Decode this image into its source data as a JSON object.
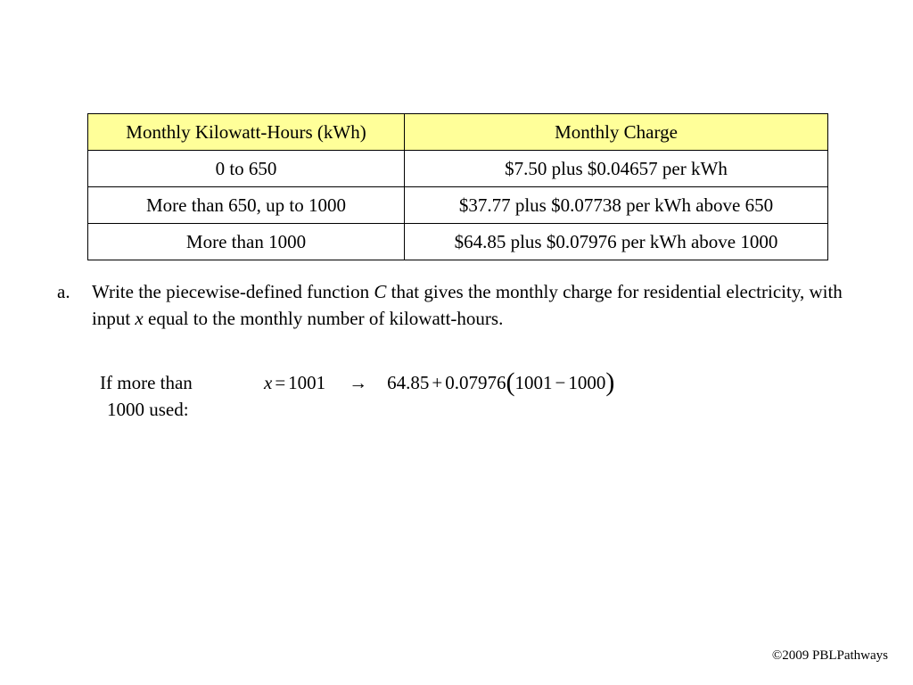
{
  "table": {
    "headers": [
      "Monthly Kilowatt-Hours (kWh)",
      "Monthly Charge"
    ],
    "rows": [
      [
        "0 to 650",
        "$7.50 plus $0.04657 per kWh"
      ],
      [
        "More than 650, up to 1000",
        "$37.77 plus $0.07738 per kWh above 650"
      ],
      [
        "More than 1000",
        "$64.85 plus $0.07976 per kWh above 1000"
      ]
    ]
  },
  "question": {
    "letter": "a.",
    "part1": "Write the piecewise-defined function ",
    "var_c": "C",
    "part2": " that gives the monthly charge for residential electricity, with input ",
    "var_x": "x",
    "part3": " equal to the monthly number of kilowatt-hours."
  },
  "condition": {
    "line1": "If more than",
    "line2": "1000 used:"
  },
  "equation": {
    "var": "x",
    "equals": "=",
    "value": "1001",
    "arrow": "→",
    "base": "64.85",
    "plus": "+",
    "rate": "0.07976",
    "open_paren": "(",
    "minuend": "1001",
    "minus": "−",
    "subtrahend": "1000",
    "close_paren": ")"
  },
  "footer": {
    "copyright": "©2009 PBLPathways"
  }
}
